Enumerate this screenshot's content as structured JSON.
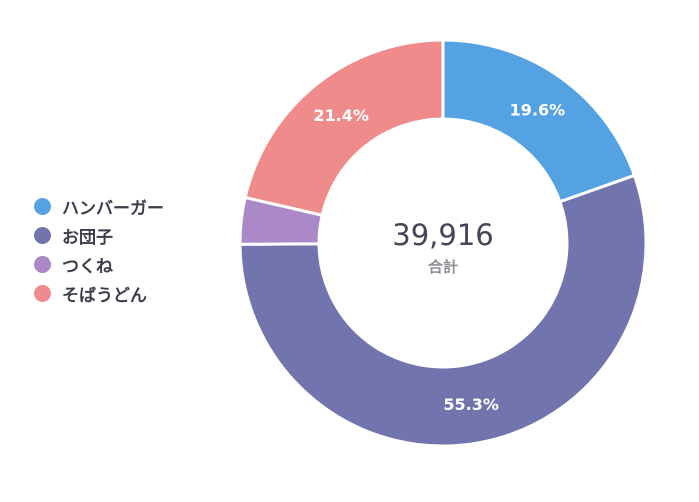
{
  "chart_data": {
    "type": "pie",
    "variant": "donut",
    "categories": [
      "ハンバーガー",
      "お団子",
      "つくね",
      "そばうどん"
    ],
    "values": [
      19.6,
      55.3,
      3.7,
      21.4
    ],
    "value_labels": [
      "19.6%",
      "55.3%",
      "",
      "21.4%"
    ],
    "colors": [
      "#55a2e3",
      "#7274ae",
      "#ab88c8",
      "#ef8c8b"
    ],
    "total": "39,916",
    "total_label": "合計",
    "legend_position": "left"
  }
}
